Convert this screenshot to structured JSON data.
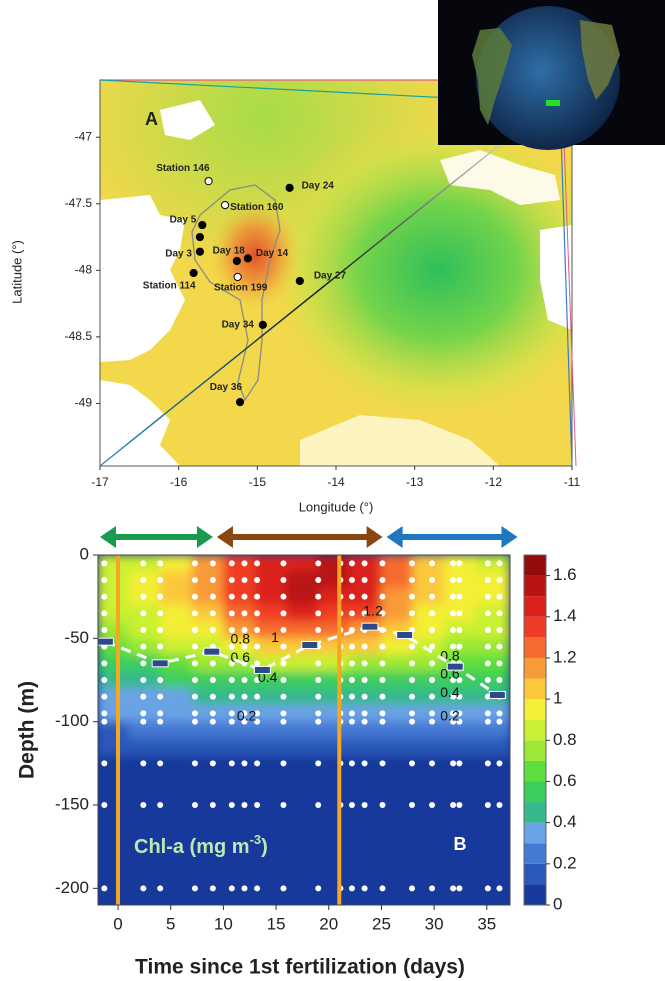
{
  "chart_data": [
    {
      "type": "scatter",
      "panel": "A",
      "xlabel": "Longitude (°)",
      "ylabel": "Latitude (°)",
      "xlim": [
        -17,
        -11
      ],
      "ylim": [
        -49.47,
        -46.57
      ],
      "xticks": [
        -17,
        -16,
        -15,
        -14,
        -13,
        -12,
        -11
      ],
      "yticks": [
        -47,
        -47.5,
        -48,
        -48.5,
        -49
      ],
      "points": [
        {
          "label": "Station 146",
          "x": -15.62,
          "y": -47.33,
          "color": "#ffffff"
        },
        {
          "label": "Station 160",
          "x": -15.41,
          "y": -47.51,
          "color": "#ffffff"
        },
        {
          "label": "Day 24",
          "x": -14.59,
          "y": -47.38,
          "color": "#000000"
        },
        {
          "label": "Day 5",
          "x": -15.7,
          "y": -47.66,
          "color": "#000000"
        },
        {
          "label": null,
          "x": -15.73,
          "y": -47.75,
          "color": "#000000"
        },
        {
          "label": "Day 3",
          "x": -15.73,
          "y": -47.86,
          "color": "#000000"
        },
        {
          "label": "Day 18",
          "x": -15.26,
          "y": -47.93,
          "color": "#000000"
        },
        {
          "label": "Day 14",
          "x": -15.12,
          "y": -47.91,
          "color": "#000000"
        },
        {
          "label": "Station 114",
          "x": -15.81,
          "y": -48.02,
          "color": "#000000"
        },
        {
          "label": "Station 199",
          "x": -15.25,
          "y": -48.05,
          "color": "#ffffff"
        },
        {
          "label": "Day 27",
          "x": -14.46,
          "y": -48.08,
          "color": "#000000"
        },
        {
          "label": "Day 34",
          "x": -14.93,
          "y": -48.41,
          "color": "#000000"
        },
        {
          "label": "Day 36",
          "x": -15.22,
          "y": -48.99,
          "color": "#000000"
        }
      ]
    },
    {
      "type": "contour",
      "panel": "B",
      "xlabel": "Time since 1st fertilization (days)",
      "ylabel": "Depth (m)",
      "colorbar_label": [
        "Chl-a (mg m",
        "-3",
        ")"
      ],
      "xlim": [
        -1.9,
        37.2
      ],
      "ylim": [
        -210,
        0
      ],
      "xticks": [
        0,
        5,
        10,
        15,
        20,
        25,
        30,
        35
      ],
      "yticks": [
        0,
        -50,
        -100,
        -150,
        -200
      ],
      "x": [
        -0.5,
        2.5,
        5.5,
        8.5,
        11.5,
        14.5,
        17.5,
        20.5,
        23.5,
        26.5,
        29.5,
        32.5,
        35.5
      ],
      "y": [
        -5,
        -15,
        -25,
        -35,
        -45,
        -55,
        -65,
        -75,
        -85,
        -95,
        -105,
        -115
      ],
      "z": [
        [
          0.8,
          0.85,
          0.95,
          1.1,
          1.3,
          1.4,
          1.45,
          1.5,
          1.45,
          1.2,
          1.0,
          0.9,
          0.85
        ],
        [
          0.85,
          0.9,
          1.0,
          1.15,
          1.35,
          1.45,
          1.5,
          1.5,
          1.45,
          1.2,
          1.0,
          0.95,
          0.9
        ],
        [
          0.85,
          0.9,
          1.0,
          1.1,
          1.3,
          1.45,
          1.5,
          1.45,
          1.4,
          1.15,
          1.0,
          0.95,
          0.9
        ],
        [
          0.8,
          0.85,
          0.95,
          1.05,
          1.25,
          1.35,
          1.4,
          1.35,
          1.3,
          1.1,
          0.95,
          0.9,
          0.85
        ],
        [
          0.75,
          0.8,
          0.9,
          0.95,
          1.1,
          1.2,
          1.2,
          1.2,
          1.15,
          1.0,
          0.9,
          0.85,
          0.8
        ],
        [
          0.65,
          0.7,
          0.8,
          0.85,
          0.95,
          1.0,
          1.0,
          1.05,
          1.0,
          0.9,
          0.8,
          0.75,
          0.75
        ],
        [
          0.55,
          0.55,
          0.6,
          0.7,
          0.75,
          0.8,
          0.8,
          0.8,
          0.75,
          0.7,
          0.7,
          0.6,
          0.65
        ],
        [
          0.45,
          0.45,
          0.5,
          0.5,
          0.5,
          0.55,
          0.55,
          0.55,
          0.55,
          0.55,
          0.55,
          0.5,
          0.55
        ],
        [
          0.3,
          0.3,
          0.35,
          0.4,
          0.4,
          0.4,
          0.4,
          0.4,
          0.4,
          0.45,
          0.45,
          0.4,
          0.45
        ],
        [
          0.3,
          0.3,
          0.3,
          0.3,
          0.3,
          0.3,
          0.3,
          0.3,
          0.3,
          0.3,
          0.35,
          0.3,
          0.35
        ],
        [
          0.15,
          0.2,
          0.2,
          0.2,
          0.2,
          0.2,
          0.2,
          0.2,
          0.2,
          0.2,
          0.2,
          0.2,
          0.2
        ],
        [
          0.1,
          0.1,
          0.15,
          0.15,
          0.15,
          0.15,
          0.15,
          0.15,
          0.15,
          0.15,
          0.15,
          0.15,
          0.15
        ]
      ],
      "levels": [
        0,
        0.1,
        0.2,
        0.3,
        0.4,
        0.5,
        0.6,
        0.7,
        0.8,
        0.9,
        1.0,
        1.1,
        1.2,
        1.3,
        1.4,
        1.5,
        1.6,
        1.7
      ],
      "colors": [
        "#17399b",
        "#2b58bb",
        "#4579d3",
        "#6aa2e6",
        "#35b98a",
        "#3ccd5c",
        "#5ede3e",
        "#9be836",
        "#c9f032",
        "#f3ef34",
        "#fbc83c",
        "#f99a38",
        "#f76a2e",
        "#f03c24",
        "#dc201c",
        "#b81414",
        "#930c0c"
      ],
      "cticks": [
        0,
        0.2,
        0.4,
        0.6,
        0.8,
        1,
        1.2,
        1.4,
        1.6
      ],
      "samples": {
        "x": [
          -1.3,
          2.4,
          4.0,
          7.3,
          9.0,
          10.8,
          12.0,
          13.2,
          15.7,
          19.0,
          21.1,
          22.2,
          23.4,
          25.1,
          27.9,
          29.8,
          31.8,
          32.4,
          35.1,
          36.2
        ],
        "y": [
          -5,
          -15,
          -25,
          -35,
          -45,
          -55,
          -65,
          -75,
          -85,
          -95,
          -100,
          -125,
          -150,
          -200
        ]
      },
      "mixed_layer": {
        "x": [
          -1.2,
          4.0,
          8.9,
          13.7,
          18.2,
          23.9,
          27.2,
          32.0,
          36.0
        ],
        "y": [
          -52,
          -65,
          -58,
          -69,
          -54,
          -43,
          -48,
          -67,
          -84
        ]
      },
      "fertilizations": [
        0,
        21
      ],
      "phases": [
        {
          "start": -1.9,
          "end": 9.2,
          "color": "#1a9a50"
        },
        {
          "start": 9.2,
          "end": 25.3,
          "color": "#8b4513"
        },
        {
          "start": 25.3,
          "end": 38.1,
          "color": "#1f77c0"
        }
      ],
      "contour_labels": [
        {
          "value": 1.2,
          "x": 24.2,
          "y": -34
        },
        {
          "value": 0.8,
          "x": 11.6,
          "y": -51
        },
        {
          "value": 1,
          "x": 14.9,
          "y": -50
        },
        {
          "value": 0.6,
          "x": 11.6,
          "y": -62
        },
        {
          "value": 0.4,
          "x": 14.2,
          "y": -74
        },
        {
          "value": 0.2,
          "x": 12.2,
          "y": -97
        },
        {
          "value": 0.8,
          "x": 31.5,
          "y": -61
        },
        {
          "value": 0.6,
          "x": 31.5,
          "y": -72
        },
        {
          "value": 0.4,
          "x": 31.5,
          "y": -83
        },
        {
          "value": 0.2,
          "x": 31.5,
          "y": -97
        }
      ]
    }
  ]
}
